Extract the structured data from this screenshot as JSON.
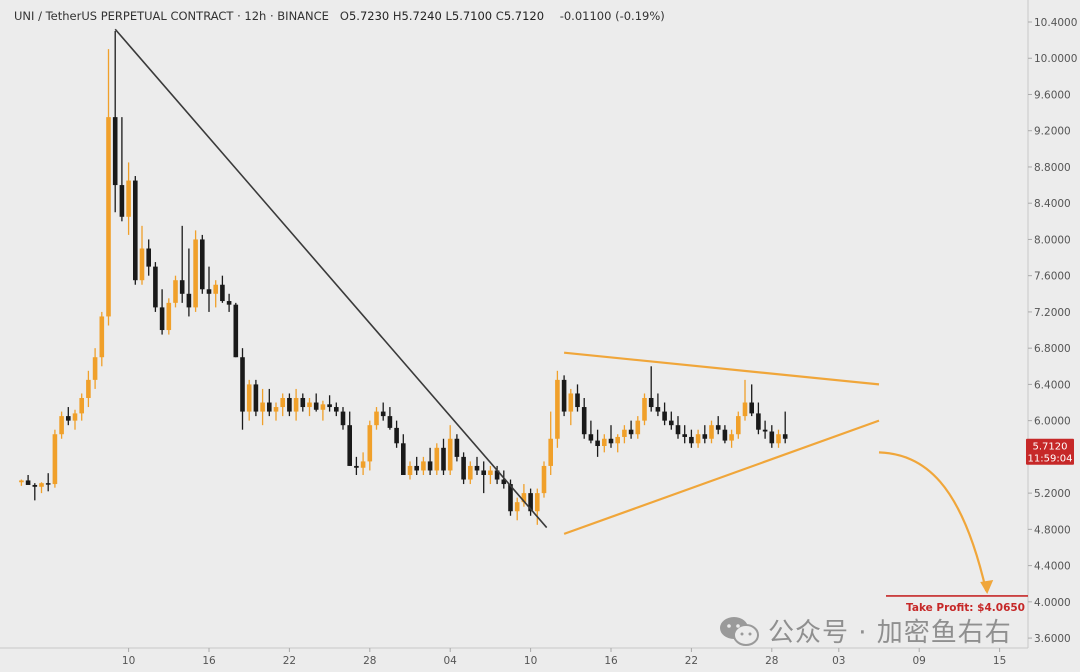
{
  "header": {
    "symbol": "UNI / TetherUS PERPETUAL CONTRACT",
    "sep1": "·",
    "interval": "12h",
    "sep2": "·",
    "exchange": "BINANCE",
    "open_label": "O",
    "open": "5.7230",
    "high_label": "H",
    "high": "5.7240",
    "low_label": "L",
    "low": "5.7100",
    "close_label": "C",
    "close": "5.7120",
    "change": "-0.01100 (-0.19%)"
  },
  "price_tag": {
    "price": "5.7120",
    "countdown": "11:59:04",
    "color": "#c62828"
  },
  "take_profit": {
    "label": "Take Profit: $4.0650",
    "value": 4.065,
    "color": "#c62828"
  },
  "watermark": {
    "text": "公众号 · 加密鱼右右"
  },
  "colors": {
    "up": "#f0a02a",
    "down": "#1a1a1a",
    "trend_black": "#3a3a3a",
    "trend_orange": "#f0a63a",
    "background": "#ececec"
  },
  "chart_data": {
    "type": "candlestick",
    "title": "",
    "y_ticks": [
      "10.4000",
      "10.0000",
      "9.6000",
      "9.2000",
      "8.8000",
      "8.4000",
      "8.0000",
      "7.6000",
      "7.2000",
      "6.8000",
      "6.4000",
      "6.0000",
      "5.6000",
      "5.2000",
      "4.8000",
      "4.4000",
      "4.0000",
      "3.6000"
    ],
    "ylim": [
      3.5,
      10.5
    ],
    "x_ticks": [
      "10",
      "16",
      "22",
      "28",
      "04",
      "10",
      "16",
      "22",
      "28",
      "03",
      "09",
      "15"
    ],
    "x_tick_index": [
      10,
      16,
      22,
      28,
      34,
      40,
      46,
      52,
      58,
      63,
      69,
      75
    ],
    "xlim": [
      1,
      80
    ],
    "candles": [
      [
        2,
        5.32,
        5.35,
        5.28,
        5.34
      ],
      [
        2.5,
        5.34,
        5.4,
        5.3,
        5.29
      ],
      [
        3,
        5.29,
        5.31,
        5.12,
        5.27
      ],
      [
        3.5,
        5.27,
        5.32,
        5.2,
        5.31
      ],
      [
        4,
        5.31,
        5.42,
        5.22,
        5.3
      ],
      [
        4.5,
        5.3,
        5.9,
        5.26,
        5.85
      ],
      [
        5,
        5.85,
        6.1,
        5.8,
        6.05
      ],
      [
        5.5,
        6.05,
        6.15,
        5.95,
        6.0
      ],
      [
        6,
        6.0,
        6.12,
        5.9,
        6.08
      ],
      [
        6.5,
        6.08,
        6.3,
        6.0,
        6.25
      ],
      [
        7,
        6.25,
        6.55,
        6.15,
        6.45
      ],
      [
        7.5,
        6.45,
        6.8,
        6.35,
        6.7
      ],
      [
        8,
        6.7,
        7.2,
        6.6,
        7.15
      ],
      [
        8.5,
        7.15,
        10.1,
        7.05,
        9.35
      ],
      [
        9,
        9.35,
        10.3,
        8.3,
        8.6
      ],
      [
        9.5,
        8.6,
        9.35,
        8.2,
        8.25
      ],
      [
        10,
        8.25,
        8.85,
        8.05,
        8.65
      ],
      [
        10.5,
        8.65,
        8.7,
        7.5,
        7.55
      ],
      [
        11,
        7.55,
        8.15,
        7.5,
        7.9
      ],
      [
        11.5,
        7.9,
        8.0,
        7.6,
        7.7
      ],
      [
        12,
        7.7,
        7.75,
        7.2,
        7.25
      ],
      [
        12.5,
        7.25,
        7.45,
        6.95,
        7.0
      ],
      [
        13,
        7.0,
        7.35,
        6.95,
        7.3
      ],
      [
        13.5,
        7.3,
        7.6,
        7.25,
        7.55
      ],
      [
        14,
        7.55,
        8.15,
        7.3,
        7.4
      ],
      [
        14.5,
        7.4,
        7.9,
        7.15,
        7.25
      ],
      [
        15,
        7.25,
        8.1,
        7.2,
        8.0
      ],
      [
        15.5,
        8.0,
        8.05,
        7.4,
        7.45
      ],
      [
        16,
        7.45,
        7.7,
        7.2,
        7.4
      ],
      [
        16.5,
        7.4,
        7.55,
        7.25,
        7.5
      ],
      [
        17,
        7.5,
        7.6,
        7.3,
        7.32
      ],
      [
        17.5,
        7.32,
        7.4,
        7.2,
        7.28
      ],
      [
        18,
        7.28,
        7.3,
        6.7,
        6.7
      ],
      [
        18.5,
        6.7,
        6.8,
        5.9,
        6.1
      ],
      [
        19,
        6.1,
        6.45,
        6.0,
        6.4
      ],
      [
        19.5,
        6.4,
        6.45,
        6.05,
        6.1
      ],
      [
        20,
        6.1,
        6.35,
        5.95,
        6.2
      ],
      [
        20.5,
        6.2,
        6.35,
        6.05,
        6.1
      ],
      [
        21,
        6.1,
        6.2,
        6.0,
        6.15
      ],
      [
        21.5,
        6.15,
        6.3,
        6.05,
        6.25
      ],
      [
        22,
        6.25,
        6.3,
        6.05,
        6.1
      ],
      [
        22.5,
        6.1,
        6.35,
        6.0,
        6.25
      ],
      [
        23,
        6.25,
        6.3,
        6.1,
        6.15
      ],
      [
        23.5,
        6.15,
        6.25,
        6.05,
        6.2
      ],
      [
        24,
        6.2,
        6.3,
        6.1,
        6.12
      ],
      [
        24.5,
        6.12,
        6.22,
        6.0,
        6.18
      ],
      [
        25,
        6.18,
        6.28,
        6.1,
        6.15
      ],
      [
        25.5,
        6.15,
        6.2,
        6.05,
        6.1
      ],
      [
        26,
        6.1,
        6.15,
        5.9,
        5.95
      ],
      [
        26.5,
        5.95,
        6.1,
        5.5,
        5.5
      ],
      [
        27,
        5.5,
        5.6,
        5.4,
        5.48
      ],
      [
        27.5,
        5.48,
        5.65,
        5.4,
        5.55
      ],
      [
        28,
        5.55,
        6.0,
        5.45,
        5.95
      ],
      [
        28.5,
        5.95,
        6.15,
        5.9,
        6.1
      ],
      [
        29,
        6.1,
        6.2,
        6.0,
        6.05
      ],
      [
        29.5,
        6.05,
        6.15,
        5.9,
        5.92
      ],
      [
        30,
        5.92,
        6.0,
        5.7,
        5.75
      ],
      [
        30.5,
        5.75,
        5.85,
        5.4,
        5.4
      ],
      [
        31,
        5.4,
        5.55,
        5.35,
        5.5
      ],
      [
        31.5,
        5.5,
        5.6,
        5.4,
        5.45
      ],
      [
        32,
        5.45,
        5.6,
        5.4,
        5.55
      ],
      [
        32.5,
        5.55,
        5.7,
        5.4,
        5.45
      ],
      [
        33,
        5.45,
        5.75,
        5.4,
        5.7
      ],
      [
        33.5,
        5.7,
        5.8,
        5.4,
        5.45
      ],
      [
        34,
        5.45,
        5.95,
        5.4,
        5.8
      ],
      [
        34.5,
        5.8,
        5.85,
        5.55,
        5.6
      ],
      [
        35,
        5.6,
        5.65,
        5.3,
        5.35
      ],
      [
        35.5,
        5.35,
        5.55,
        5.3,
        5.5
      ],
      [
        36,
        5.5,
        5.6,
        5.4,
        5.45
      ],
      [
        36.5,
        5.45,
        5.55,
        5.2,
        5.4
      ],
      [
        37,
        5.4,
        5.5,
        5.3,
        5.45
      ],
      [
        37.5,
        5.45,
        5.5,
        5.3,
        5.35
      ],
      [
        38,
        5.35,
        5.45,
        5.25,
        5.3
      ],
      [
        38.5,
        5.3,
        5.35,
        4.95,
        5.0
      ],
      [
        39,
        5.0,
        5.15,
        4.9,
        5.1
      ],
      [
        39.5,
        5.1,
        5.3,
        5.05,
        5.2
      ],
      [
        40,
        5.2,
        5.25,
        4.95,
        5.0
      ],
      [
        40.5,
        5.0,
        5.25,
        4.85,
        5.2
      ],
      [
        41,
        5.2,
        5.55,
        5.15,
        5.5
      ],
      [
        41.5,
        5.5,
        6.1,
        5.4,
        5.8
      ],
      [
        42,
        5.8,
        6.55,
        5.7,
        6.45
      ],
      [
        42.5,
        6.45,
        6.5,
        6.05,
        6.1
      ],
      [
        43,
        6.1,
        6.35,
        5.95,
        6.3
      ],
      [
        43.5,
        6.3,
        6.4,
        6.1,
        6.15
      ],
      [
        44,
        6.15,
        6.25,
        5.8,
        5.85
      ],
      [
        44.5,
        5.85,
        6.0,
        5.75,
        5.78
      ],
      [
        45,
        5.78,
        5.9,
        5.6,
        5.72
      ],
      [
        45.5,
        5.72,
        5.85,
        5.65,
        5.8
      ],
      [
        46,
        5.8,
        5.95,
        5.7,
        5.75
      ],
      [
        46.5,
        5.75,
        5.85,
        5.65,
        5.82
      ],
      [
        47,
        5.82,
        5.95,
        5.75,
        5.9
      ],
      [
        47.5,
        5.9,
        6.0,
        5.8,
        5.85
      ],
      [
        48,
        5.85,
        6.05,
        5.8,
        6.0
      ],
      [
        48.5,
        6.0,
        6.3,
        5.95,
        6.25
      ],
      [
        49,
        6.25,
        6.6,
        6.1,
        6.15
      ],
      [
        49.5,
        6.15,
        6.3,
        6.05,
        6.1
      ],
      [
        50,
        6.1,
        6.2,
        5.95,
        6.0
      ],
      [
        50.5,
        6.0,
        6.1,
        5.9,
        5.95
      ],
      [
        51,
        5.95,
        6.05,
        5.8,
        5.85
      ],
      [
        51.5,
        5.85,
        5.95,
        5.75,
        5.82
      ],
      [
        52,
        5.82,
        5.9,
        5.7,
        5.75
      ],
      [
        52.5,
        5.75,
        5.9,
        5.7,
        5.85
      ],
      [
        53,
        5.85,
        5.95,
        5.75,
        5.8
      ],
      [
        53.5,
        5.8,
        6.0,
        5.75,
        5.95
      ],
      [
        54,
        5.95,
        6.05,
        5.85,
        5.9
      ],
      [
        54.5,
        5.9,
        5.95,
        5.75,
        5.78
      ],
      [
        55,
        5.78,
        5.9,
        5.7,
        5.85
      ],
      [
        55.5,
        5.85,
        6.1,
        5.8,
        6.05
      ],
      [
        56,
        6.05,
        6.45,
        6.0,
        6.2
      ],
      [
        56.5,
        6.2,
        6.4,
        6.05,
        6.08
      ],
      [
        57,
        6.08,
        6.2,
        5.85,
        5.9
      ],
      [
        57.5,
        5.9,
        6.0,
        5.8,
        5.88
      ],
      [
        58,
        5.88,
        5.95,
        5.7,
        5.75
      ],
      [
        58.5,
        5.75,
        5.9,
        5.7,
        5.85
      ],
      [
        59,
        5.85,
        6.1,
        5.75,
        5.8
      ]
    ],
    "trendlines": [
      {
        "name": "black-trendline",
        "points": [
          [
            9,
            10.32
          ],
          [
            41.2,
            4.82
          ]
        ]
      },
      {
        "name": "orange-upper-trendline",
        "points": [
          [
            42.5,
            6.75
          ],
          [
            66,
            6.4
          ]
        ]
      },
      {
        "name": "orange-lower-trendline",
        "points": [
          [
            42.5,
            4.75
          ],
          [
            66,
            6.0
          ]
        ]
      }
    ],
    "forecast_curve": {
      "start": [
        66,
        5.65
      ],
      "end": [
        74,
        4.12
      ]
    }
  }
}
